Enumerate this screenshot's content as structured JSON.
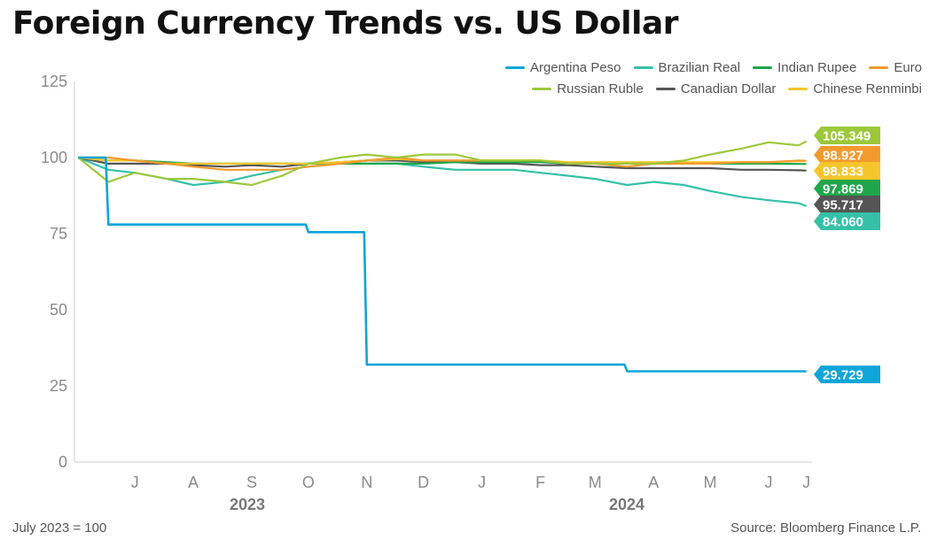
{
  "title": "Foreign Currency Trends vs. US Dollar",
  "footnote": "July 2023 = 100",
  "source": "Source: Bloomberg Finance L.P.",
  "colors": {
    "Argentina Peso": "#0ea5d8",
    "Brazilian Real": "#35c0a8",
    "Indian Rupee": "#1fa64a",
    "Euro": "#f39a2e",
    "Russian Ruble": "#9cc83a",
    "Canadian Dollar": "#555555",
    "Chinese Renminbi": "#f6c52c"
  },
  "legend": {
    "row1": [
      "Argentina Peso",
      "Brazilian Real",
      "Indian Rupee",
      "Euro"
    ],
    "row2": [
      "Russian Ruble",
      "Canadian Dollar",
      "Chinese Renminbi"
    ]
  },
  "chart_data": {
    "type": "line",
    "title": "Foreign Currency Trends vs. US Dollar",
    "xlabel": "",
    "ylabel": "",
    "ylim": [
      0,
      125
    ],
    "yticks": [
      0,
      25,
      50,
      75,
      100,
      125
    ],
    "grid": false,
    "x_tick_labels": [
      "J",
      "A",
      "S",
      "O",
      "N",
      "D",
      "J",
      "F",
      "M",
      "A",
      "M",
      "J",
      "J"
    ],
    "year_labels": [
      "2023",
      "2024"
    ],
    "x": [
      "2023-06-15",
      "2023-07-01",
      "2023-07-15",
      "2023-08-01",
      "2023-08-15",
      "2023-09-01",
      "2023-09-15",
      "2023-10-01",
      "2023-10-15",
      "2023-11-01",
      "2023-11-15",
      "2023-12-01",
      "2023-12-15",
      "2024-01-01",
      "2024-01-15",
      "2024-02-01",
      "2024-02-15",
      "2024-03-01",
      "2024-03-15",
      "2024-04-01",
      "2024-04-15",
      "2024-05-01",
      "2024-05-15",
      "2024-06-01",
      "2024-06-15",
      "2024-07-01",
      "2024-07-05"
    ],
    "series": [
      {
        "name": "Argentina Peso",
        "end_label": "29.729",
        "values": [
          100,
          78,
          78,
          78,
          78,
          78,
          78,
          78,
          75.5,
          75.5,
          32,
          32,
          32,
          32,
          32,
          32,
          32,
          32,
          32,
          29.8,
          29.8,
          29.8,
          29.8,
          29.8,
          29.8,
          29.8,
          29.729
        ]
      },
      {
        "name": "Brazilian Real",
        "end_label": "84.060",
        "values": [
          100,
          96,
          95,
          93,
          91,
          92,
          94,
          96,
          97,
          98,
          98,
          98,
          97,
          96,
          96,
          96,
          95,
          94,
          93,
          91,
          92,
          91,
          89,
          87,
          86,
          85,
          84.06
        ]
      },
      {
        "name": "Indian Rupee",
        "end_label": "97.869",
        "values": [
          100,
          99,
          99,
          98.5,
          98,
          98,
          98,
          98,
          98,
          98,
          98,
          98,
          98,
          98.5,
          98.5,
          98.5,
          98.5,
          98,
          98,
          98,
          98,
          98,
          98,
          98,
          98,
          97.9,
          97.869
        ]
      },
      {
        "name": "Euro",
        "end_label": "98.927",
        "values": [
          100,
          100,
          99,
          98,
          97,
          96,
          96,
          96,
          97,
          98,
          99,
          100,
          99,
          99,
          99,
          99,
          99,
          98,
          98,
          97,
          98,
          98,
          98,
          98.5,
          98.5,
          99,
          98.927
        ]
      },
      {
        "name": "Russian Ruble",
        "end_label": "105.349",
        "values": [
          100,
          92,
          95,
          93,
          93,
          92,
          91,
          94,
          98,
          100,
          101,
          100,
          101,
          101,
          99,
          99,
          99,
          98,
          98,
          98,
          98,
          99,
          101,
          103,
          105,
          104,
          105.349
        ]
      },
      {
        "name": "Canadian Dollar",
        "end_label": "95.717",
        "values": [
          100,
          98,
          98,
          98,
          97.5,
          97,
          97.5,
          97,
          98,
          98.5,
          99,
          99,
          98.5,
          98.5,
          98,
          98,
          97.5,
          97.5,
          97,
          96.5,
          96.5,
          96.5,
          96.5,
          96,
          96,
          95.8,
          95.717
        ]
      },
      {
        "name": "Chinese Renminbi",
        "end_label": "98.833",
        "values": [
          100,
          99,
          99,
          98,
          98,
          98,
          98,
          98,
          98,
          98.5,
          99,
          99.5,
          99,
          99,
          99,
          99,
          99,
          98.5,
          98.5,
          98.5,
          98.5,
          98.5,
          98.5,
          98.5,
          98.5,
          98.8,
          98.833
        ]
      }
    ]
  }
}
